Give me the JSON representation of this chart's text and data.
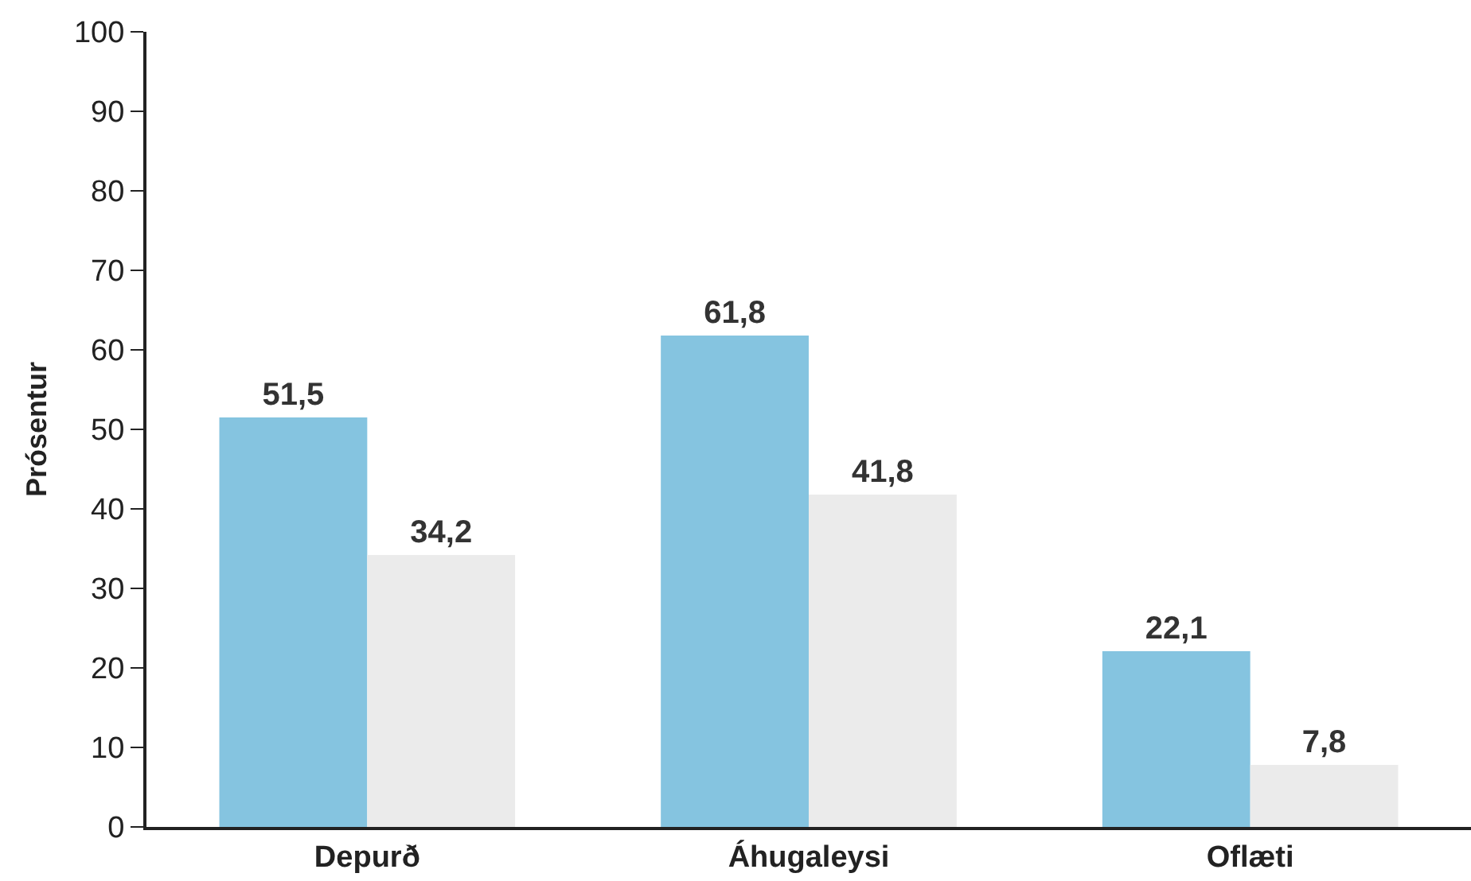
{
  "chart_data": {
    "type": "bar",
    "ylabel": "Prósentur",
    "categories": [
      "Depurð",
      "Áhugaleysi",
      "Oflæti"
    ],
    "series": [
      {
        "color": "#85c4e0",
        "values": [
          51.5,
          61.8,
          22.1
        ],
        "value_labels": [
          "51,5",
          "61,8",
          "22,1"
        ]
      },
      {
        "color": "#ebebeb",
        "values": [
          34.2,
          41.8,
          7.8
        ],
        "value_labels": [
          "34,2",
          "41,8",
          "7,8"
        ]
      }
    ],
    "ylim": [
      0,
      100
    ],
    "yticks": [
      0,
      10,
      20,
      30,
      40,
      50,
      60,
      70,
      80,
      90,
      100
    ],
    "grid": false
  }
}
